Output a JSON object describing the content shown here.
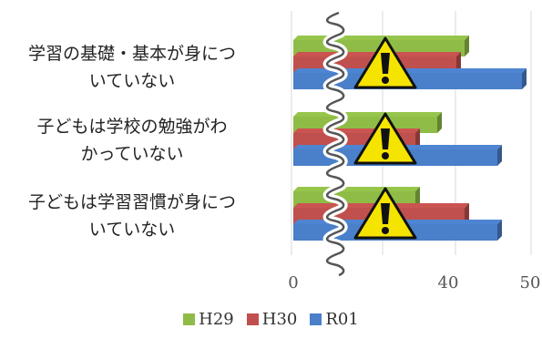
{
  "chart_data": {
    "type": "bar",
    "orientation": "horizontal",
    "categories": [
      "学習の基礎・基本が身についていない",
      "子どもは学校の勉強がわかっていない",
      "子どもは学習習慣が身についていない"
    ],
    "category_lines": [
      [
        "学習の基礎・基本が身につ",
        "いていない"
      ],
      [
        "子どもは学校の勉強がわ",
        "かっていない"
      ],
      [
        "子どもは学習習慣が身につ",
        "いていない"
      ]
    ],
    "series": [
      {
        "name": "H29",
        "color": "#8fbc47",
        "values": [
          42,
          39,
          37
        ]
      },
      {
        "name": "H30",
        "color": "#c0504d",
        "values": [
          41,
          37,
          42
        ]
      },
      {
        "name": "R01",
        "color": "#4a7fc9",
        "values": [
          49,
          46,
          46
        ]
      }
    ],
    "xticks": [
      "0",
      "40",
      "50"
    ],
    "xtick_values": [
      0,
      40,
      50
    ],
    "axis_break": "between 0 and 40",
    "xlim": [
      0,
      50
    ],
    "grid": true,
    "legend_position": "bottom",
    "annotation_icon": "warning-triangle-icon"
  }
}
